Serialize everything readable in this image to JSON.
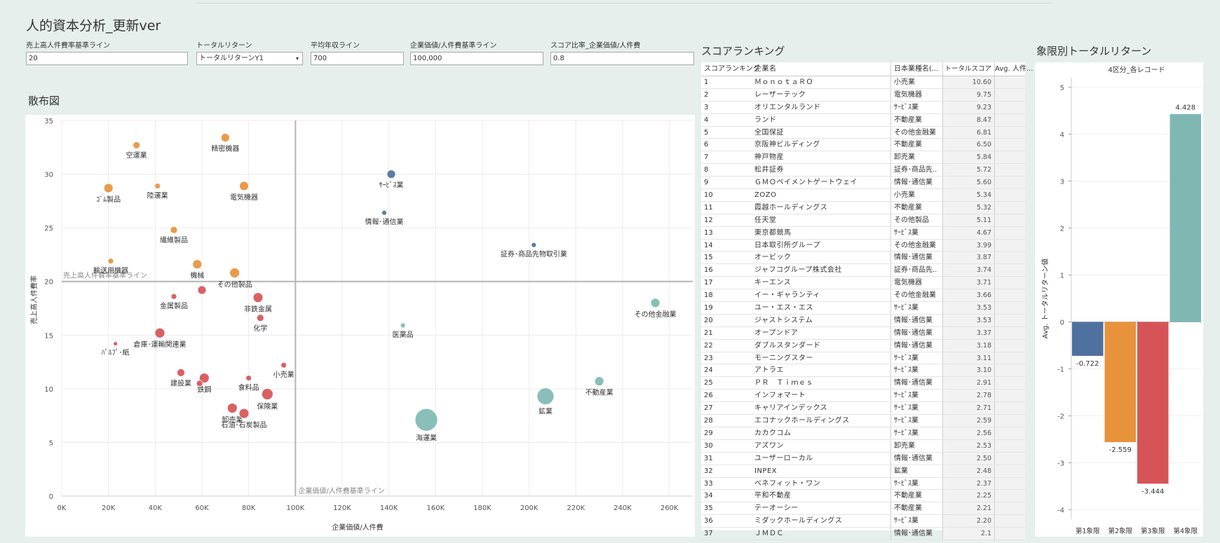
{
  "page_title": "人的資本分析_更新ver",
  "filters": [
    {
      "label": "売上高人件費率基準ライン",
      "value": "20",
      "dropdown": false
    },
    {
      "label": "トータルリターン",
      "value": "トータルリターンY1",
      "dropdown": true
    },
    {
      "label": "平均年収ライン",
      "value": "700",
      "dropdown": false
    },
    {
      "label": "企業価値/人件費基準ライン",
      "value": "100,000",
      "dropdown": false
    },
    {
      "label": "スコア比率_企業価値/人件費",
      "value": "0.8",
      "dropdown": false
    }
  ],
  "sections": {
    "scatter": "散布図",
    "ranking": "スコアランキング",
    "quadrant": "象限別トータルリターン"
  },
  "colors": {
    "q1": "#4e71a0",
    "q2": "#e8933b",
    "q3": "#d65457",
    "q4": "#7fb8b3"
  },
  "chart_data": [
    {
      "type": "scatter",
      "title": "散布図",
      "xlabel": "企業価値/人件費",
      "ylabel": "売上高人件費率",
      "xlim": [
        0,
        270000
      ],
      "ylim": [
        0,
        35
      ],
      "xticks": [
        "0K",
        "20K",
        "40K",
        "60K",
        "80K",
        "100K",
        "120K",
        "140K",
        "160K",
        "180K",
        "200K",
        "220K",
        "240K",
        "260K"
      ],
      "yticks": [
        "0",
        "5",
        "10",
        "15",
        "20",
        "25",
        "30",
        "35"
      ],
      "grid": true,
      "reference_lines": {
        "y": {
          "value": 20,
          "label": "売上高人件費率基準ライン"
        },
        "x": {
          "value": 100000,
          "label": "企業価値/人件費基準ライン"
        }
      },
      "points": [
        {
          "label": "空運業",
          "x": 32000,
          "y": 32.7,
          "size": 5,
          "q": "q2"
        },
        {
          "label": "精密機器",
          "x": 70000,
          "y": 33.4,
          "size": 6,
          "q": "q2"
        },
        {
          "label": "ｺﾞﾑ製品",
          "x": 20000,
          "y": 28.7,
          "size": 6.5,
          "q": "q2"
        },
        {
          "label": "陸運業",
          "x": 41000,
          "y": 28.9,
          "size": 4,
          "q": "q2"
        },
        {
          "label": "電気機器",
          "x": 78000,
          "y": 28.9,
          "size": 6.5,
          "q": "q2"
        },
        {
          "label": "繊維製品",
          "x": 48000,
          "y": 24.8,
          "size": 5,
          "q": "q2"
        },
        {
          "label": "輸送用機器",
          "x": 21000,
          "y": 21.9,
          "size": 4,
          "q": "q2"
        },
        {
          "label": "機械",
          "x": 58000,
          "y": 21.6,
          "size": 6.5,
          "q": "q2"
        },
        {
          "label": "その他製品",
          "x": 74000,
          "y": 20.8,
          "size": 7,
          "q": "q2"
        },
        {
          "label": "ｻｰﾋﾞｽ業",
          "x": 141000,
          "y": 30.0,
          "size": 6,
          "q": "q1"
        },
        {
          "label": "情報･通信業",
          "x": 138000,
          "y": 26.4,
          "size": 3.5,
          "q": "q1"
        },
        {
          "label": "証券･商品先物取引業",
          "x": 202000,
          "y": 23.4,
          "size": 3.5,
          "q": "q1"
        },
        {
          "label": "その他金融業",
          "x": 254000,
          "y": 18.0,
          "size": 6.5,
          "q": "q4"
        },
        {
          "label": "医薬品",
          "x": 146000,
          "y": 15.9,
          "size": 3.5,
          "q": "q4"
        },
        {
          "label": "鉱業",
          "x": 207000,
          "y": 9.3,
          "size": 12,
          "q": "q4"
        },
        {
          "label": "不動産業",
          "x": 230000,
          "y": 10.7,
          "size": 6.5,
          "q": "q4"
        },
        {
          "label": "海運業",
          "x": 156000,
          "y": 7.1,
          "size": 16,
          "q": "q4"
        },
        {
          "label": "金属製品",
          "x": 48000,
          "y": 18.6,
          "size": 4,
          "q": "q3"
        },
        {
          "label": "",
          "x": 60000,
          "y": 19.2,
          "size": 6,
          "q": "q3"
        },
        {
          "label": "非鉄金属",
          "x": 84000,
          "y": 18.5,
          "size": 7,
          "q": "q3"
        },
        {
          "label": "化学",
          "x": 85000,
          "y": 16.6,
          "size": 5,
          "q": "q3"
        },
        {
          "label": "倉庫･運輸関連業",
          "x": 42000,
          "y": 15.2,
          "size": 7,
          "q": "q3"
        },
        {
          "label": "ﾊﾟﾙﾌﾟ･紙",
          "x": 23000,
          "y": 14.2,
          "size": 3,
          "q": "q3"
        },
        {
          "label": "小売業",
          "x": 95000,
          "y": 12.2,
          "size": 4,
          "q": "q3"
        },
        {
          "label": "建設業",
          "x": 51000,
          "y": 11.5,
          "size": 5.5,
          "q": "q3"
        },
        {
          "label": "鉄鋼",
          "x": 61000,
          "y": 11.0,
          "size": 7,
          "q": "q3"
        },
        {
          "label": "",
          "x": 59000,
          "y": 10.5,
          "size": 4.5,
          "q": "q3"
        },
        {
          "label": "食料品",
          "x": 80000,
          "y": 11.0,
          "size": 4,
          "q": "q3"
        },
        {
          "label": "保険業",
          "x": 88000,
          "y": 9.5,
          "size": 8,
          "q": "q3"
        },
        {
          "label": "卸売業",
          "x": 73000,
          "y": 8.2,
          "size": 7,
          "q": "q3"
        },
        {
          "label": "石油･石炭製品",
          "x": 78000,
          "y": 7.7,
          "size": 7,
          "q": "q3"
        }
      ]
    },
    {
      "type": "bar",
      "title": "4区分_各レコード",
      "ylabel": "Avg. トータルリターン値",
      "categories": [
        "第1象限",
        "第2象限",
        "第3象限",
        "第4象限"
      ],
      "values": [
        -0.722,
        -2.559,
        -3.444,
        4.428
      ],
      "value_labels": [
        "-0.722",
        "-2.559",
        "-3.444",
        "4.428"
      ],
      "ylim": [
        -4.2,
        5.2
      ],
      "yticks": [
        "5",
        "4",
        "3",
        "2",
        "1",
        "0",
        "-1",
        "-2",
        "-3",
        "-4"
      ],
      "colors": [
        "#4e71a0",
        "#e8933b",
        "#d65457",
        "#7fb8b3"
      ]
    }
  ],
  "ranking": {
    "headers": [
      "スコアランキング",
      "企業名",
      "日本業種名(...",
      "トータルスコア",
      "Avg. 人件..."
    ],
    "rows": [
      [
        "1",
        "ＭｏｎｏｔａＲＯ",
        "小売業",
        "10.60"
      ],
      [
        "2",
        "レーザーテック",
        "電気機器",
        "9.75"
      ],
      [
        "3",
        "オリエンタルランド",
        "ｻｰﾋﾞｽ業",
        "9.23"
      ],
      [
        "4",
        "ランド",
        "不動産業",
        "8.47"
      ],
      [
        "5",
        "全国保証",
        "その他金融業",
        "6.81"
      ],
      [
        "6",
        "京阪神ビルディング",
        "不動産業",
        "6.50"
      ],
      [
        "7",
        "神戸物産",
        "卸売業",
        "5.84"
      ],
      [
        "8",
        "松井証券",
        "証券･商品先..",
        "5.72"
      ],
      [
        "9",
        "ＧＭＯペイメントゲートウェイ",
        "情報･通信業",
        "5.60"
      ],
      [
        "10",
        "ZOZO",
        "小売業",
        "5.34"
      ],
      [
        "11",
        "霞越ホールディングス",
        "不動産業",
        "5.32"
      ],
      [
        "12",
        "任天堂",
        "その他製品",
        "5.11"
      ],
      [
        "13",
        "東京都競馬",
        "ｻｰﾋﾞｽ業",
        "4.67"
      ],
      [
        "14",
        "日本取引所グループ",
        "その他金融業",
        "3.99"
      ],
      [
        "15",
        "オービック",
        "情報･通信業",
        "3.87"
      ],
      [
        "16",
        "ジャフコグループ株式会社",
        "証券･商品先..",
        "3.74"
      ],
      [
        "17",
        "キーエンス",
        "電気機器",
        "3.71"
      ],
      [
        "18",
        "イー・ギャランティ",
        "その他金融業",
        "3.66"
      ],
      [
        "19",
        "ユー・エス・エス",
        "ｻｰﾋﾞｽ業",
        "3.53"
      ],
      [
        "20",
        "ジャストシステム",
        "情報･通信業",
        "3.53"
      ],
      [
        "21",
        "オープンドア",
        "情報･通信業",
        "3.37"
      ],
      [
        "22",
        "ダブルスタンダード",
        "情報･通信業",
        "3.18"
      ],
      [
        "23",
        "モーニングスター",
        "ｻｰﾋﾞｽ業",
        "3.11"
      ],
      [
        "24",
        "アトラエ",
        "ｻｰﾋﾞｽ業",
        "3.10"
      ],
      [
        "25",
        "ＰＲ　Ｔｉｍｅｓ",
        "情報･通信業",
        "2.91"
      ],
      [
        "26",
        "インフォマート",
        "ｻｰﾋﾞｽ業",
        "2.78"
      ],
      [
        "27",
        "キャリアインデックス",
        "ｻｰﾋﾞｽ業",
        "2.71"
      ],
      [
        "28",
        "エコナックホールディングス",
        "ｻｰﾋﾞｽ業",
        "2.59"
      ],
      [
        "29",
        "カカクコム",
        "ｻｰﾋﾞｽ業",
        "2.56"
      ],
      [
        "30",
        "アズワン",
        "卸売業",
        "2.53"
      ],
      [
        "31",
        "ユーザーローカル",
        "情報･通信業",
        "2.50"
      ],
      [
        "32",
        "INPEX",
        "鉱業",
        "2.48"
      ],
      [
        "33",
        "ベネフィット・ワン",
        "ｻｰﾋﾞｽ業",
        "2.37"
      ],
      [
        "34",
        "平和不動産",
        "不動産業",
        "2.25"
      ],
      [
        "35",
        "テーオーシー",
        "不動産業",
        "2.21"
      ],
      [
        "36",
        "ミダックホールディングス",
        "ｻｰﾋﾞｽ業",
        "2.20"
      ],
      [
        "37",
        "ＪＭＤＣ",
        "情報･通信業",
        "2.1"
      ]
    ]
  }
}
